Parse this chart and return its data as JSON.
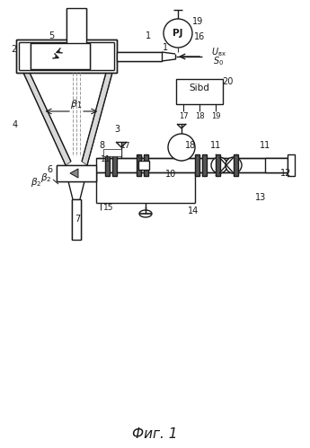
{
  "title": "Фиг. 1",
  "background": "#ffffff",
  "lc": "#1a1a1a",
  "lw": 1.0,
  "fig_width": 3.45,
  "fig_height": 4.99,
  "dpi": 100,
  "xlim": [
    0,
    345
  ],
  "ylim": [
    0,
    499
  ]
}
